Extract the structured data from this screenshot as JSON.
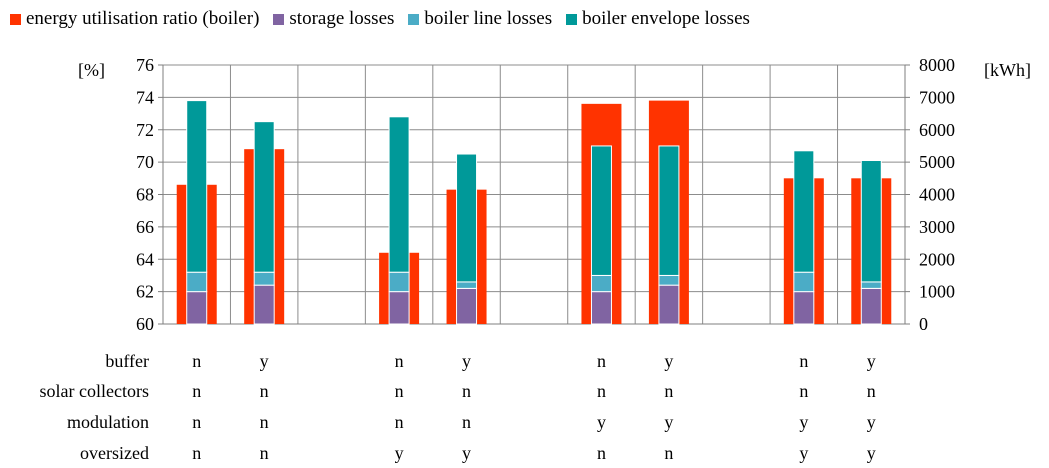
{
  "chart_data": {
    "type": "bar",
    "legend": [
      {
        "key": "ratio",
        "label": "energy utilisation ratio (boiler)",
        "color": "#ff3300"
      },
      {
        "key": "storage",
        "label": "storage losses",
        "color": "#8064a2"
      },
      {
        "key": "line",
        "label": "boiler line  losses",
        "color": "#4bacc6"
      },
      {
        "key": "envelope",
        "label": "boiler envelope losses",
        "color": "#009999"
      }
    ],
    "left_axis": {
      "unit": "[%]",
      "min": 60,
      "max": 76,
      "ticks": [
        "60",
        "62",
        "64",
        "66",
        "68",
        "70",
        "72",
        "74",
        "76"
      ]
    },
    "right_axis": {
      "unit": "[kWh]",
      "min": 0,
      "max": 8000,
      "ticks": [
        "0",
        "1000",
        "2000",
        "3000",
        "4000",
        "5000",
        "6000",
        "7000",
        "8000"
      ]
    },
    "slots": 11,
    "bars": [
      {
        "slot": 0,
        "ratio": 68.6,
        "storage": 1000,
        "line": 600,
        "envelope": 5300
      },
      {
        "slot": 1,
        "ratio": 70.8,
        "storage": 1200,
        "line": 400,
        "envelope": 4650
      },
      {
        "slot": 3,
        "ratio": 64.4,
        "storage": 1000,
        "line": 600,
        "envelope": 4800
      },
      {
        "slot": 4,
        "ratio": 68.3,
        "storage": 1100,
        "line": 200,
        "envelope": 3950
      },
      {
        "slot": 6,
        "ratio": 73.6,
        "storage": 1000,
        "line": 500,
        "envelope": 4000
      },
      {
        "slot": 7,
        "ratio": 73.8,
        "storage": 1200,
        "line": 300,
        "envelope": 4000
      },
      {
        "slot": 9,
        "ratio": 69.0,
        "storage": 1000,
        "line": 600,
        "envelope": 3750
      },
      {
        "slot": 10,
        "ratio": 69.0,
        "storage": 1100,
        "line": 200,
        "envelope": 3750
      }
    ],
    "table": [
      {
        "label": "buffer",
        "values": [
          "n",
          "y",
          "n",
          "y",
          "n",
          "y",
          "n",
          "y"
        ]
      },
      {
        "label": "solar collectors",
        "values": [
          "n",
          "n",
          "n",
          "n",
          "n",
          "n",
          "n",
          "n"
        ]
      },
      {
        "label": "modulation",
        "values": [
          "n",
          "n",
          "n",
          "n",
          "y",
          "y",
          "y",
          "y"
        ]
      },
      {
        "label": "oversized",
        "values": [
          "n",
          "n",
          "y",
          "y",
          "n",
          "n",
          "y",
          "y"
        ]
      }
    ]
  }
}
